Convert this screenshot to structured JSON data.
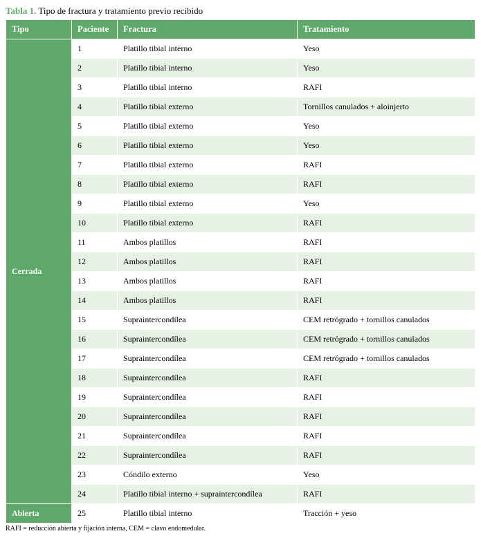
{
  "caption": {
    "label": "Tabla 1.",
    "text": "Tipo de fractura y tratamiento previo recibido"
  },
  "columns": {
    "tipo": "Tipo",
    "paciente": "Paciente",
    "fractura": "Fractura",
    "tratamiento": "Tratamiento"
  },
  "col_widths": {
    "tipo": "95px",
    "paciente": "66px",
    "fractura": "260px",
    "tratamiento": "auto"
  },
  "groups": [
    {
      "tipo": "Cerrada",
      "rows": [
        {
          "paciente": "1",
          "fractura": "Platillo tibial interno",
          "tratamiento": "Yeso"
        },
        {
          "paciente": "2",
          "fractura": "Platillo tibial interno",
          "tratamiento": "Yeso"
        },
        {
          "paciente": "3",
          "fractura": "Platillo tibial interno",
          "tratamiento": "RAFI"
        },
        {
          "paciente": "4",
          "fractura": "Platillo tibial externo",
          "tratamiento": "Tornillos canulados + aloinjerto"
        },
        {
          "paciente": "5",
          "fractura": "Platillo tibial externo",
          "tratamiento": "Yeso"
        },
        {
          "paciente": "6",
          "fractura": "Platillo tibial externo",
          "tratamiento": "Yeso"
        },
        {
          "paciente": "7",
          "fractura": "Platillo tibial externo",
          "tratamiento": "RAFI"
        },
        {
          "paciente": "8",
          "fractura": "Platillo tibial externo",
          "tratamiento": "RAFI"
        },
        {
          "paciente": "9",
          "fractura": "Platillo tibial externo",
          "tratamiento": "Yeso"
        },
        {
          "paciente": "10",
          "fractura": "Platillo tibial externo",
          "tratamiento": "RAFI"
        },
        {
          "paciente": "11",
          "fractura": "Ambos platillos",
          "tratamiento": "RAFI"
        },
        {
          "paciente": "12",
          "fractura": "Ambos platillos",
          "tratamiento": "RAFI"
        },
        {
          "paciente": "13",
          "fractura": "Ambos platillos",
          "tratamiento": "RAFI"
        },
        {
          "paciente": "14",
          "fractura": "Ambos platillos",
          "tratamiento": "RAFI"
        },
        {
          "paciente": "15",
          "fractura": "Supraintercondílea",
          "tratamiento": "CEM retrógrado + tornillos canulados"
        },
        {
          "paciente": "16",
          "fractura": "Supraintercondílea",
          "tratamiento": "CEM retrógrado + tornillos canulados"
        },
        {
          "paciente": "17",
          "fractura": "Supraintercondílea",
          "tratamiento": "CEM retrógrado + tornillos canulados"
        },
        {
          "paciente": "18",
          "fractura": "Supraintercondílea",
          "tratamiento": "RAFI"
        },
        {
          "paciente": "19",
          "fractura": "Supraintercondílea",
          "tratamiento": "RAFI"
        },
        {
          "paciente": "20",
          "fractura": "Supraintercondílea",
          "tratamiento": "RAFI"
        },
        {
          "paciente": "21",
          "fractura": "Supraintercondílea",
          "tratamiento": "RAFI"
        },
        {
          "paciente": "22",
          "fractura": "Supraintercondílea",
          "tratamiento": "RAFI"
        },
        {
          "paciente": "23",
          "fractura": "Cóndilo externo",
          "tratamiento": "Yeso"
        },
        {
          "paciente": "24",
          "fractura": "Platillo tibial interno + supraintercondílea",
          "tratamiento": "RAFI"
        }
      ]
    },
    {
      "tipo": "Abierta",
      "rows": [
        {
          "paciente": "25",
          "fractura": "Platillo tibial interno",
          "tratamiento": "Tracción + yeso"
        }
      ]
    }
  ],
  "footnote": "RAFI = reducción abierta y fijación interna, CEM = clavo endomedular.",
  "colors": {
    "header_bg": "#5ea96a",
    "header_fg": "#ffffff",
    "row_alt_bg": "#e7f0e4",
    "row_bg": "#ffffff",
    "border": "#ffffff"
  }
}
